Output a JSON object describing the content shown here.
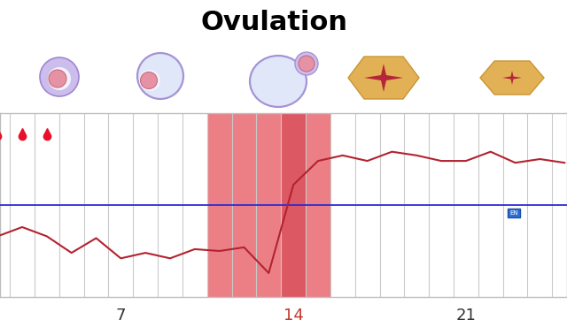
{
  "chart_data": {
    "type": "line",
    "title": "Ovulation",
    "x": [
      2,
      3,
      4,
      5,
      6,
      7,
      8,
      9,
      10,
      11,
      12,
      13,
      14,
      15,
      16,
      17,
      18,
      19,
      20,
      21,
      22,
      23,
      24,
      25
    ],
    "values": [
      36.33,
      36.38,
      36.33,
      36.24,
      36.32,
      36.21,
      36.24,
      36.21,
      36.26,
      36.25,
      36.27,
      36.13,
      36.61,
      36.74,
      36.77,
      36.74,
      36.79,
      36.77,
      36.74,
      36.74,
      36.79,
      36.73,
      36.75,
      36.73
    ],
    "color": "#b2232f",
    "xlim": [
      2.1,
      25.1
    ],
    "ylim": [
      36.0,
      37.0
    ],
    "xticks": [
      7,
      14,
      21
    ],
    "yticks": [],
    "grid": true,
    "tick_labels": "x",
    "coverline": {
      "value": 36.5,
      "color": "#2b2bd6"
    },
    "fertile_days": [
      11,
      12,
      13,
      14,
      15
    ],
    "ovulation_day": 14,
    "bleeding_days": [
      2,
      3,
      4
    ],
    "annotations": [
      "EN"
    ]
  }
}
